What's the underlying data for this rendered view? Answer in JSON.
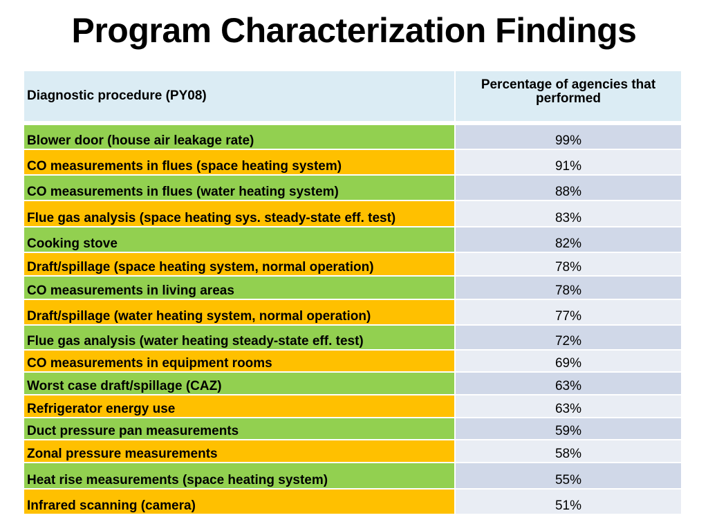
{
  "title": "Program Characterization Findings",
  "table": {
    "headers": [
      "Diagnostic procedure (PY08)",
      "Percentage of agencies that performed"
    ],
    "rows": [
      {
        "procedure": "Blower door (house air leakage rate)",
        "percent": "99%",
        "color": "#92d050"
      },
      {
        "procedure": "CO measurements in flues (space heating system)",
        "percent": "91%",
        "color": "#ffc000"
      },
      {
        "procedure": "CO measurements in flues (water heating system)",
        "percent": "88%",
        "color": "#92d050"
      },
      {
        "procedure": "Flue gas analysis (space heating sys. steady-state eff. test)",
        "percent": "83%",
        "color": "#ffc000"
      },
      {
        "procedure": "Cooking stove",
        "percent": "82%",
        "color": "#92d050"
      },
      {
        "procedure": "Draft/spillage (space heating system, normal operation)",
        "percent": "78%",
        "color": "#ffc000"
      },
      {
        "procedure": "CO measurements in living areas",
        "percent": "78%",
        "color": "#92d050"
      },
      {
        "procedure": "Draft/spillage (water heating system, normal operation)",
        "percent": "77%",
        "color": "#ffc000"
      },
      {
        "procedure": "Flue gas analysis (water heating steady-state eff. test)",
        "percent": "72%",
        "color": "#92d050"
      },
      {
        "procedure": "CO measurements in equipment rooms",
        "percent": "69%",
        "color": "#ffc000"
      },
      {
        "procedure": "Worst case draft/spillage (CAZ)",
        "percent": "63%",
        "color": "#92d050"
      },
      {
        "procedure": "Refrigerator energy use",
        "percent": "63%",
        "color": "#ffc000"
      },
      {
        "procedure": "Duct pressure pan measurements",
        "percent": "59%",
        "color": "#92d050"
      },
      {
        "procedure": "Zonal pressure measurements",
        "percent": "58%",
        "color": "#ffc000"
      },
      {
        "procedure": "Heat rise measurements (space heating system)",
        "percent": "55%",
        "color": "#92d050"
      },
      {
        "procedure": "Infrared scanning (camera)",
        "percent": "51%",
        "color": "#ffc000"
      }
    ]
  }
}
